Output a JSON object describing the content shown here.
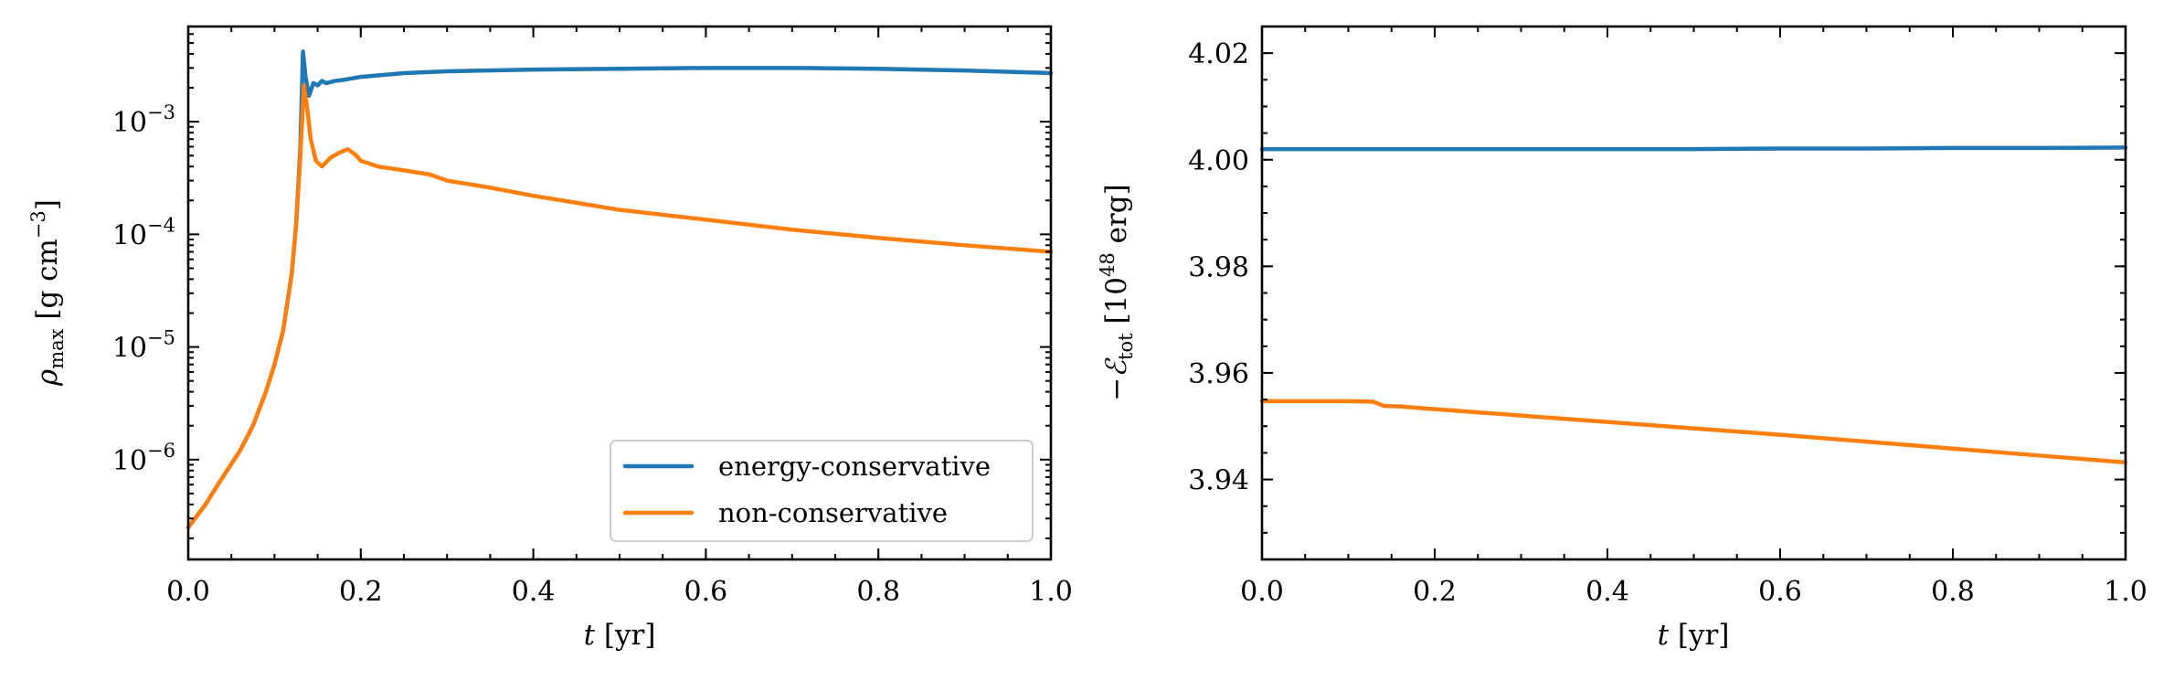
{
  "colors": {
    "energy_conservative": "#1f77b4",
    "non_conservative": "#ff7f0e"
  },
  "chart_data": [
    {
      "type": "line",
      "yscale": "log",
      "xlabel": "t [yr]",
      "ylabel": "ρ_max [g cm^-3]",
      "ylabel_parts": {
        "symbol": "ρ",
        "sub": "max",
        "unit_open": " [g cm",
        "exp": "−3",
        "unit_close": "]"
      },
      "xlabel_parts": {
        "symbol": "t",
        "unit": " [yr]"
      },
      "xlim": [
        0.0,
        1.0
      ],
      "ylim": [
        1.3e-07,
        0.007
      ],
      "xticks": [
        0.0,
        0.2,
        0.4,
        0.6,
        0.8,
        1.0
      ],
      "xtick_labels": [
        "0.0",
        "0.2",
        "0.4",
        "0.6",
        "0.8",
        "1.0"
      ],
      "yticks": [
        1e-06,
        1e-05,
        0.0001,
        0.001
      ],
      "ytick_labels": [
        {
          "base": "10",
          "exp": "−6"
        },
        {
          "base": "10",
          "exp": "−5"
        },
        {
          "base": "10",
          "exp": "−4"
        },
        {
          "base": "10",
          "exp": "−3"
        }
      ],
      "legend": {
        "placement": "lower-right",
        "entries": [
          "energy-conservative",
          "non-conservative"
        ]
      },
      "series": [
        {
          "name": "energy-conservative",
          "color_key": "energy_conservative",
          "x": [
            0.0,
            0.02,
            0.04,
            0.06,
            0.075,
            0.09,
            0.1,
            0.11,
            0.12,
            0.125,
            0.13,
            0.133,
            0.136,
            0.14,
            0.145,
            0.15,
            0.155,
            0.16,
            0.17,
            0.18,
            0.2,
            0.25,
            0.3,
            0.4,
            0.5,
            0.6,
            0.7,
            0.8,
            0.9,
            1.0
          ],
          "y": [
            2.5e-07,
            4e-07,
            7e-07,
            1.2e-06,
            2e-06,
            4e-06,
            7e-06,
            1.4e-05,
            4.5e-05,
            0.00012,
            0.0006,
            0.0042,
            0.0025,
            0.0017,
            0.0022,
            0.0021,
            0.0023,
            0.0022,
            0.0023,
            0.00235,
            0.0025,
            0.0027,
            0.0028,
            0.0029,
            0.00295,
            0.003,
            0.003,
            0.00295,
            0.00285,
            0.0027
          ]
        },
        {
          "name": "non-conservative",
          "color_key": "non_conservative",
          "x": [
            0.0,
            0.02,
            0.04,
            0.06,
            0.075,
            0.09,
            0.1,
            0.11,
            0.12,
            0.125,
            0.13,
            0.134,
            0.138,
            0.142,
            0.148,
            0.155,
            0.165,
            0.175,
            0.185,
            0.195,
            0.2,
            0.22,
            0.25,
            0.28,
            0.3,
            0.35,
            0.4,
            0.5,
            0.6,
            0.7,
            0.8,
            0.9,
            1.0
          ],
          "y": [
            2.5e-07,
            4e-07,
            7e-07,
            1.2e-06,
            2e-06,
            4e-06,
            7e-06,
            1.4e-05,
            4.5e-05,
            0.00012,
            0.0005,
            0.0021,
            0.0013,
            0.0007,
            0.00045,
            0.0004,
            0.00048,
            0.00053,
            0.00057,
            0.0005,
            0.00045,
            0.0004,
            0.00037,
            0.00034,
            0.0003,
            0.00026,
            0.00022,
            0.000165,
            0.000135,
            0.00011,
            9.3e-05,
            8e-05,
            7e-05
          ]
        }
      ]
    },
    {
      "type": "line",
      "yscale": "linear",
      "xlabel": "t [yr]",
      "ylabel": "−E_tot [10^48 erg]",
      "ylabel_parts": {
        "prefix": "−",
        "symbol": "ℰ",
        "sub": "tot",
        "unit_open": " [10",
        "exp": "48",
        "unit_close": " erg]"
      },
      "xlabel_parts": {
        "symbol": "t",
        "unit": " [yr]"
      },
      "xlim": [
        0.0,
        1.0
      ],
      "ylim": [
        3.925,
        4.025
      ],
      "xticks": [
        0.0,
        0.2,
        0.4,
        0.6,
        0.8,
        1.0
      ],
      "xtick_labels": [
        "0.0",
        "0.2",
        "0.4",
        "0.6",
        "0.8",
        "1.0"
      ],
      "yticks": [
        3.94,
        3.96,
        3.98,
        4.0,
        4.02
      ],
      "ytick_labels": [
        "3.94",
        "3.96",
        "3.98",
        "4.00",
        "4.02"
      ],
      "series": [
        {
          "name": "energy-conservative",
          "color_key": "energy_conservative",
          "x": [
            0.0,
            0.1,
            0.2,
            0.3,
            0.4,
            0.5,
            0.6,
            0.7,
            0.8,
            0.9,
            1.0
          ],
          "y": [
            4.002,
            4.002,
            4.002,
            4.002,
            4.002,
            4.002,
            4.0021,
            4.0021,
            4.0022,
            4.0022,
            4.0023
          ]
        },
        {
          "name": "non-conservative",
          "color_key": "non_conservative",
          "x": [
            0.0,
            0.05,
            0.1,
            0.128,
            0.135,
            0.142,
            0.16,
            0.2,
            0.3,
            0.4,
            0.5,
            0.6,
            0.7,
            0.8,
            0.9,
            1.0
          ],
          "y": [
            3.9547,
            3.9547,
            3.9547,
            3.9546,
            3.9542,
            3.9538,
            3.9537,
            3.9532,
            3.952,
            3.9508,
            3.9496,
            3.9484,
            3.9471,
            3.9458,
            3.9445,
            3.9432
          ]
        }
      ]
    }
  ]
}
